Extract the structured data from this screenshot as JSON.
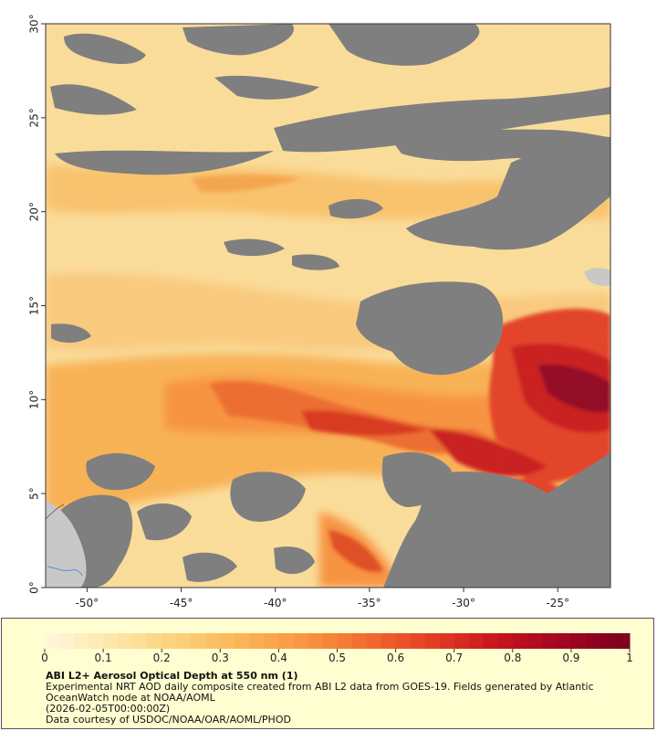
{
  "map": {
    "lon_range": [
      -52.2,
      -22.2
    ],
    "lat_range": [
      0,
      30
    ],
    "x_ticks": [
      "-50°",
      "-45°",
      "-40°",
      "-35°",
      "-30°",
      "-25°"
    ],
    "x_tick_values": [
      -50,
      -45,
      -40,
      -35,
      -30,
      -25
    ],
    "y_ticks": [
      "0°",
      "5°",
      "10°",
      "15°",
      "20°",
      "25°",
      "30°"
    ],
    "y_tick_values": [
      0,
      5,
      10,
      15,
      20,
      25,
      30
    ],
    "colors": {
      "no_data": "#7f7f7f",
      "land": "#c8c8c8",
      "river": "#5b8fd6",
      "background_low": "#fde3a0",
      "aod_mid": "#f9a23c",
      "aod_high": "#c8151d",
      "aod_max": "#7d0020"
    }
  },
  "legend": {
    "title": "ABI L2+ Aerosol Optical Depth at 550 nm (1)",
    "description": "Experimental NRT AOD daily composite created from ABI L2 data from GOES-19. Fields generated by Atlantic OceanWatch node at NOAA/AOML",
    "date": "(2026-02-05T00:00:00Z)",
    "credit": "Data courtesy of USDOC/NOAA/OAR/AOML/PHOD",
    "ticks": [
      "0",
      "0.1",
      "0.2",
      "0.3",
      "0.4",
      "0.5",
      "0.6",
      "0.7",
      "0.8",
      "0.9",
      "1"
    ],
    "tick_values": [
      0,
      0.1,
      0.2,
      0.3,
      0.4,
      0.5,
      0.6,
      0.7,
      0.8,
      0.9,
      1
    ],
    "range": [
      0,
      1
    ],
    "colorscale": [
      "#fff6d8",
      "#fde6a6",
      "#fcd07a",
      "#fbb557",
      "#f99440",
      "#f26a2e",
      "#e33e25",
      "#c8151d",
      "#a40622",
      "#7d0020"
    ]
  }
}
